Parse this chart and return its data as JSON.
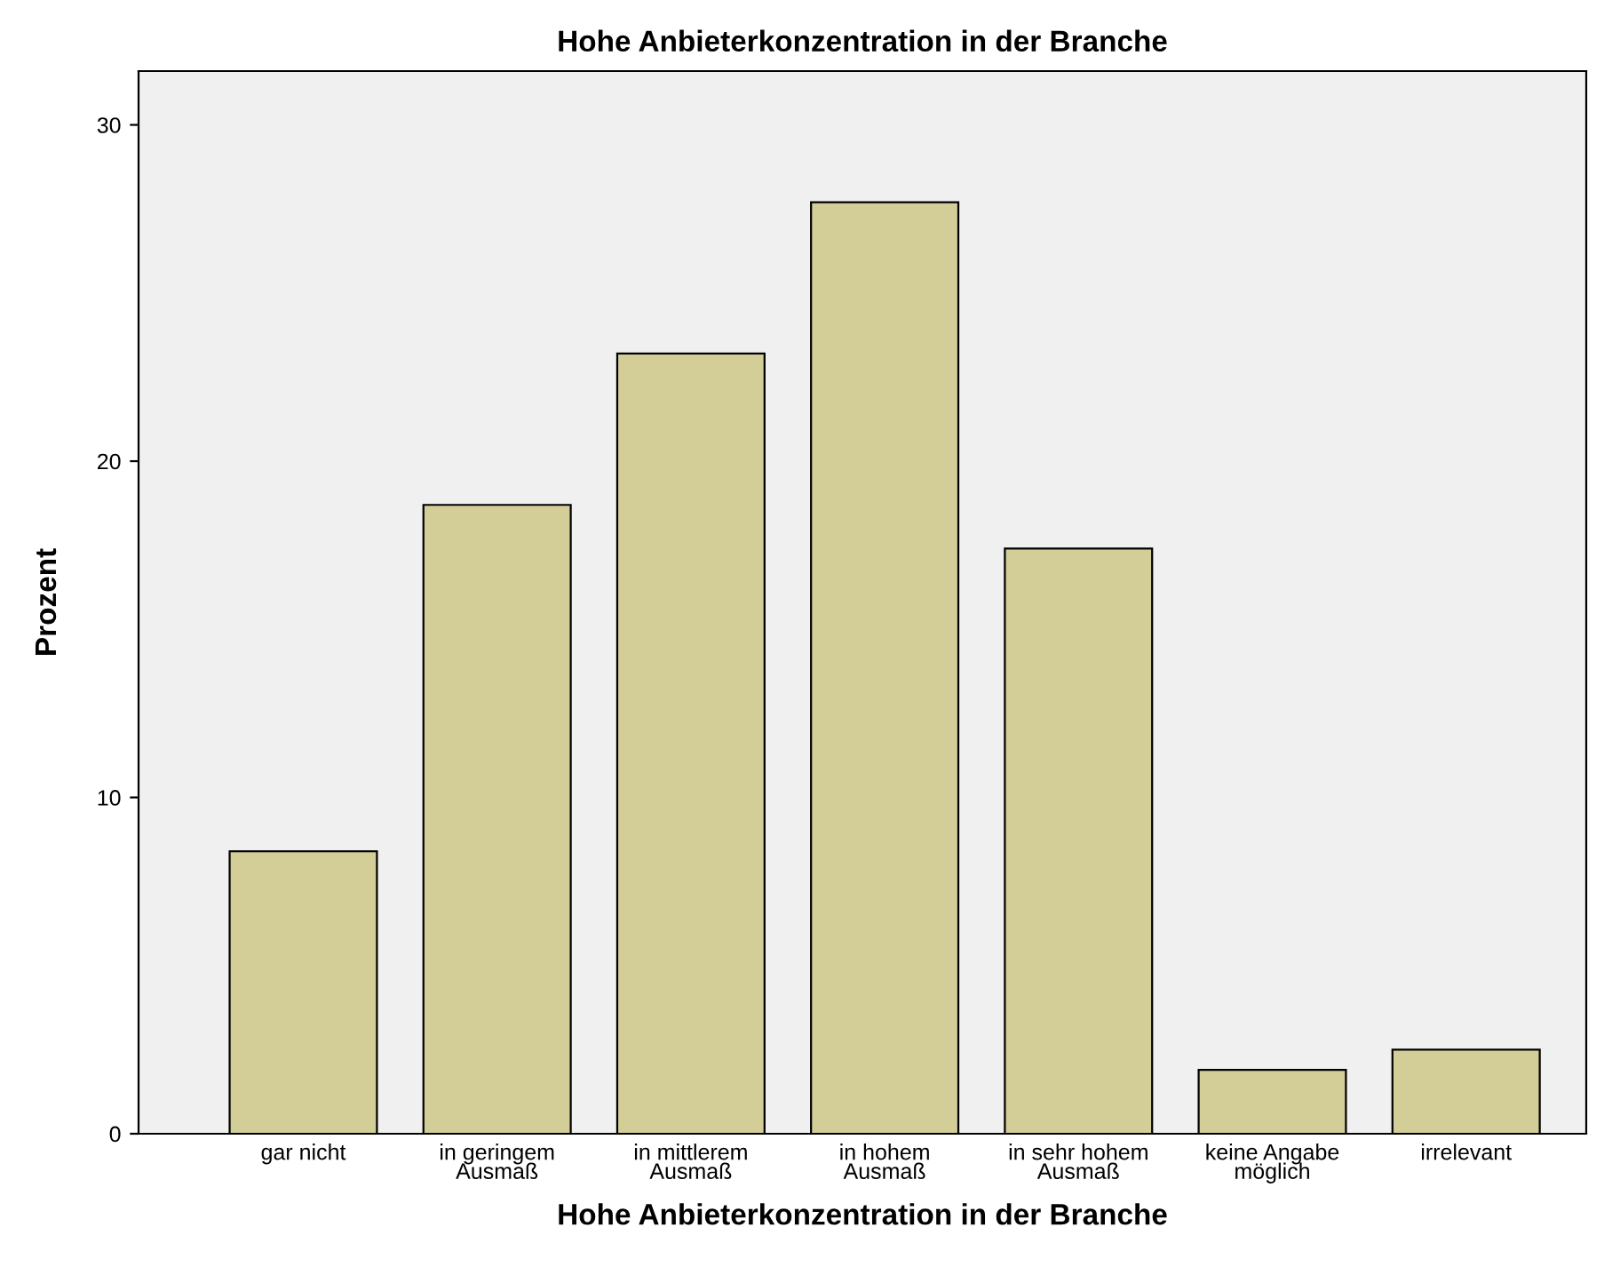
{
  "chart_data": {
    "type": "bar",
    "title": "Hohe Anbieterkonzentration in der Branche",
    "xlabel": "Hohe Anbieterkonzentration in der Branche",
    "ylabel": "Prozent",
    "categories": [
      "gar nicht",
      "in geringem\nAusmaß",
      "in mittlerem\nAusmaß",
      "in hohem\nAusmaß",
      "in sehr hohem\nAusmaß",
      "keine Angabe\nmöglich",
      "irrelevant"
    ],
    "values": [
      8.4,
      18.7,
      23.2,
      27.7,
      17.4,
      1.9,
      2.5
    ],
    "color": "#d3ce97",
    "ylim": [
      0,
      31.6
    ],
    "yticks": [
      0,
      10,
      20,
      30
    ],
    "grid": false
  }
}
